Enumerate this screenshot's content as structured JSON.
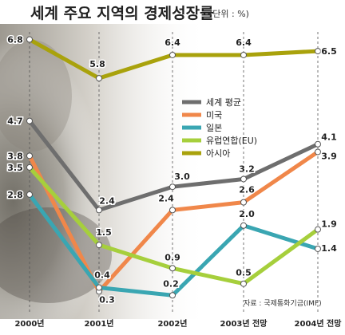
{
  "chart_data": {
    "type": "line",
    "title": "세계 주요 지역의 경제성장률",
    "unit": "(단위 : %)",
    "source": "자료 : 국제통화기금(IMF)",
    "categories": [
      "2000년",
      "2001년",
      "2002년",
      "2003년 전망",
      "2004년 전망"
    ],
    "ylim": [
      0,
      7
    ],
    "grid": false,
    "legend_position": "center-right",
    "series": [
      {
        "name": "세계 평균",
        "color": "#6e6e6e",
        "values": [
          4.7,
          2.4,
          3.0,
          3.2,
          4.1
        ],
        "labels": [
          "4.7",
          "2.4",
          "3.0",
          "3.2",
          "4.1"
        ]
      },
      {
        "name": "미국",
        "color": "#f0874a",
        "values": [
          3.8,
          0.3,
          2.4,
          2.6,
          3.9
        ],
        "labels": [
          "3.8",
          "0.3",
          "2.4",
          "2.6",
          "3.9"
        ]
      },
      {
        "name": "일본",
        "color": "#3aa6b2",
        "values": [
          2.8,
          0.4,
          0.2,
          2.0,
          1.4
        ],
        "labels": [
          "2.8",
          "0.4",
          "0.2",
          "2.0",
          "1.4"
        ]
      },
      {
        "name": "유럽연합(EU)",
        "color": "#a6cf3c",
        "values": [
          3.5,
          1.5,
          0.9,
          0.5,
          1.9
        ],
        "labels": [
          "3.5",
          "1.5",
          "0.9",
          "0.5",
          "1.9"
        ]
      },
      {
        "name": "아시아",
        "color": "#a9a20c",
        "values": [
          6.8,
          5.8,
          6.4,
          6.4,
          6.5
        ],
        "labels": [
          "6.8",
          "5.8",
          "6.4",
          "6.4",
          "6.5"
        ]
      }
    ]
  }
}
